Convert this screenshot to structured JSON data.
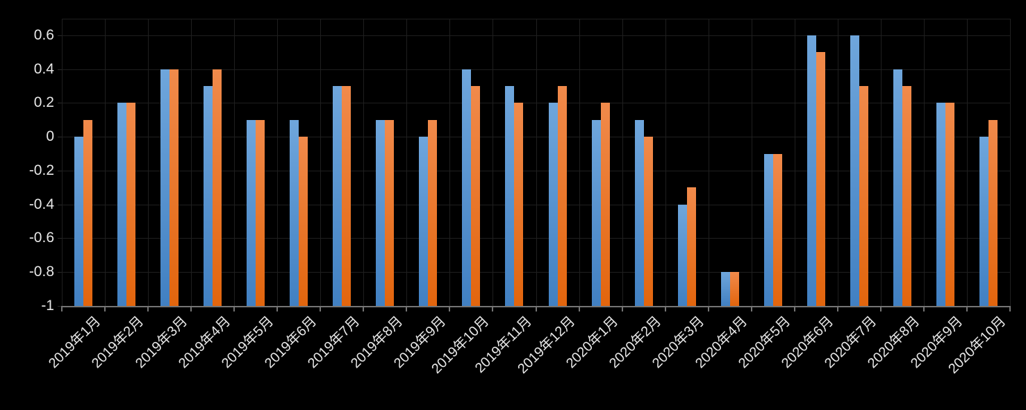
{
  "chart_data": {
    "type": "bar",
    "title": "",
    "categories": [
      "2019年1月",
      "2019年2月",
      "2019年3月",
      "2019年4月",
      "2019年5月",
      "2019年6月",
      "2019年7月",
      "2019年8月",
      "2019年9月",
      "2019年10月",
      "2019年11月",
      "2019年12月",
      "2020年1月",
      "2020年2月",
      "2020年3月",
      "2020年4月",
      "2020年5月",
      "2020年6月",
      "2020年7月",
      "2020年8月",
      "2020年9月",
      "2020年10月"
    ],
    "series": [
      {
        "name": "blue-series",
        "color": "#5B9BD5",
        "gradient_top": "#6FA6DC",
        "gradient_bottom": "#4180C2",
        "values": [
          0,
          0.2,
          0.4,
          0.3,
          0.1,
          0.1,
          0.3,
          0.1,
          0,
          0.4,
          0.3,
          0.2,
          0.1,
          0.1,
          -0.4,
          -0.8,
          -0.1,
          0.6,
          0.6,
          0.4,
          0.2,
          0
        ]
      },
      {
        "name": "orange-series",
        "color": "#ED7D31",
        "gradient_top": "#F18A4B",
        "gradient_bottom": "#E2650D",
        "values": [
          0.1,
          0.2,
          0.4,
          0.4,
          0.1,
          0,
          0.3,
          0.1,
          0.1,
          0.3,
          0.2,
          0.3,
          0.2,
          0,
          -0.3,
          -0.8,
          -0.1,
          0.5,
          0.3,
          0.3,
          0.2,
          0.1
        ]
      }
    ],
    "bar_base": -1,
    "y_axis": {
      "min": -1,
      "max": 0.7,
      "tick_values": [
        0.6,
        0.4,
        0.2,
        0,
        -0.2,
        -0.4,
        -0.6,
        -0.8,
        -1
      ],
      "tick_labels": [
        "0.6",
        "0.4",
        "0.2",
        "0",
        "-0.2",
        "-0.4",
        "-0.6",
        "-0.8",
        "-1"
      ]
    },
    "grid": true,
    "legend_position": "none",
    "colors": {
      "background": "#000000",
      "gridline": "#1f1f1f",
      "axis_line": "#757575",
      "label_text": "#e8e8e8"
    }
  }
}
